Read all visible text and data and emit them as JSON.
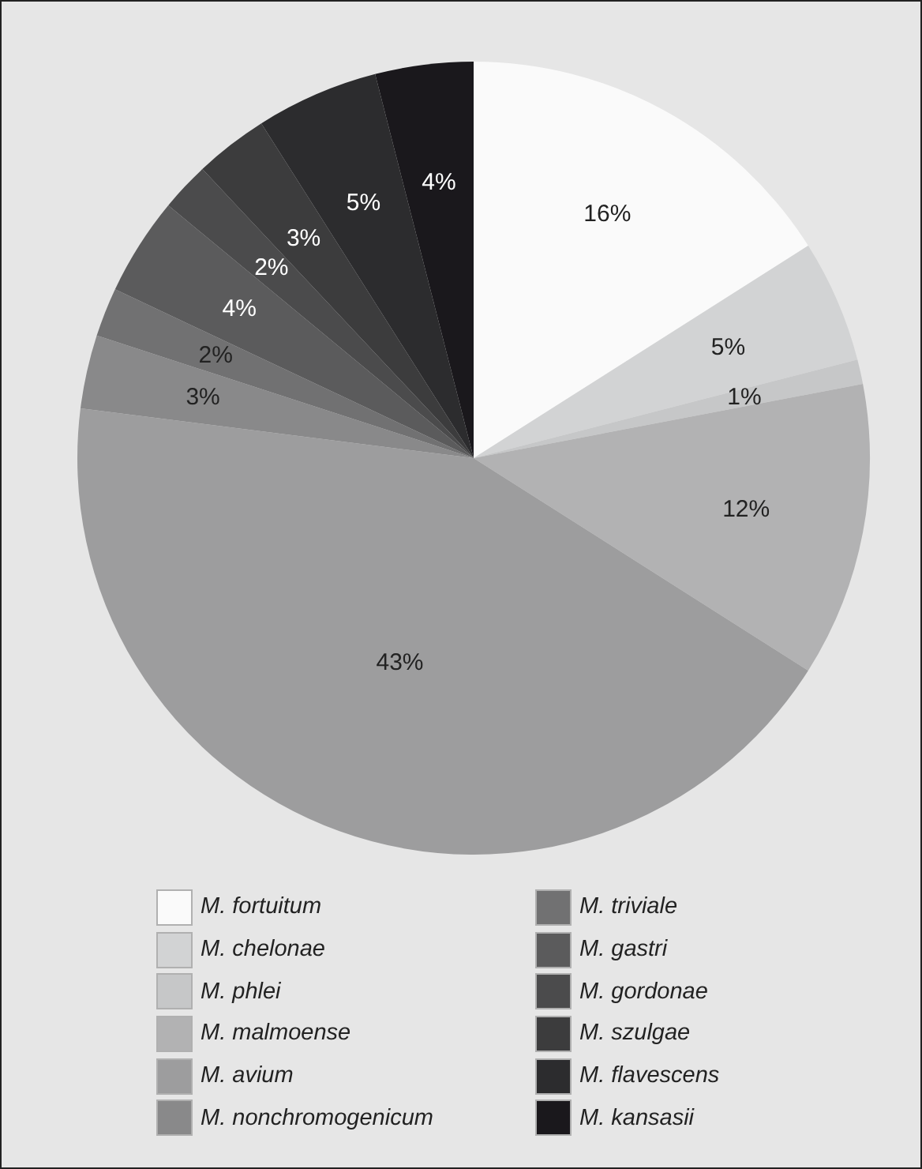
{
  "chart_data": {
    "type": "pie",
    "categories": [
      "M. fortuitum",
      "M. chelonae",
      "M. phlei",
      "M. malmoense",
      "M. avium",
      "M. nonchromogenicum",
      "M. triviale",
      "M. gastri",
      "M. gordonae",
      "M. szulgae",
      "M. flavescens",
      "M. kansasii"
    ],
    "values": [
      16,
      5,
      1,
      12,
      43,
      3,
      2,
      4,
      2,
      3,
      5,
      4
    ],
    "colors": [
      "#fafafa",
      "#d2d3d4",
      "#c6c7c8",
      "#b2b2b3",
      "#9d9d9e",
      "#89898a",
      "#717172",
      "#5b5b5c",
      "#4b4b4c",
      "#3c3c3d",
      "#2c2c2e",
      "#1a181c"
    ],
    "value_labels": [
      "16%",
      "5%",
      "1%",
      "12%",
      "43%",
      "3%",
      "2%",
      "4%",
      "2%",
      "3%",
      "5%",
      "4%"
    ],
    "legend": "bottom"
  }
}
